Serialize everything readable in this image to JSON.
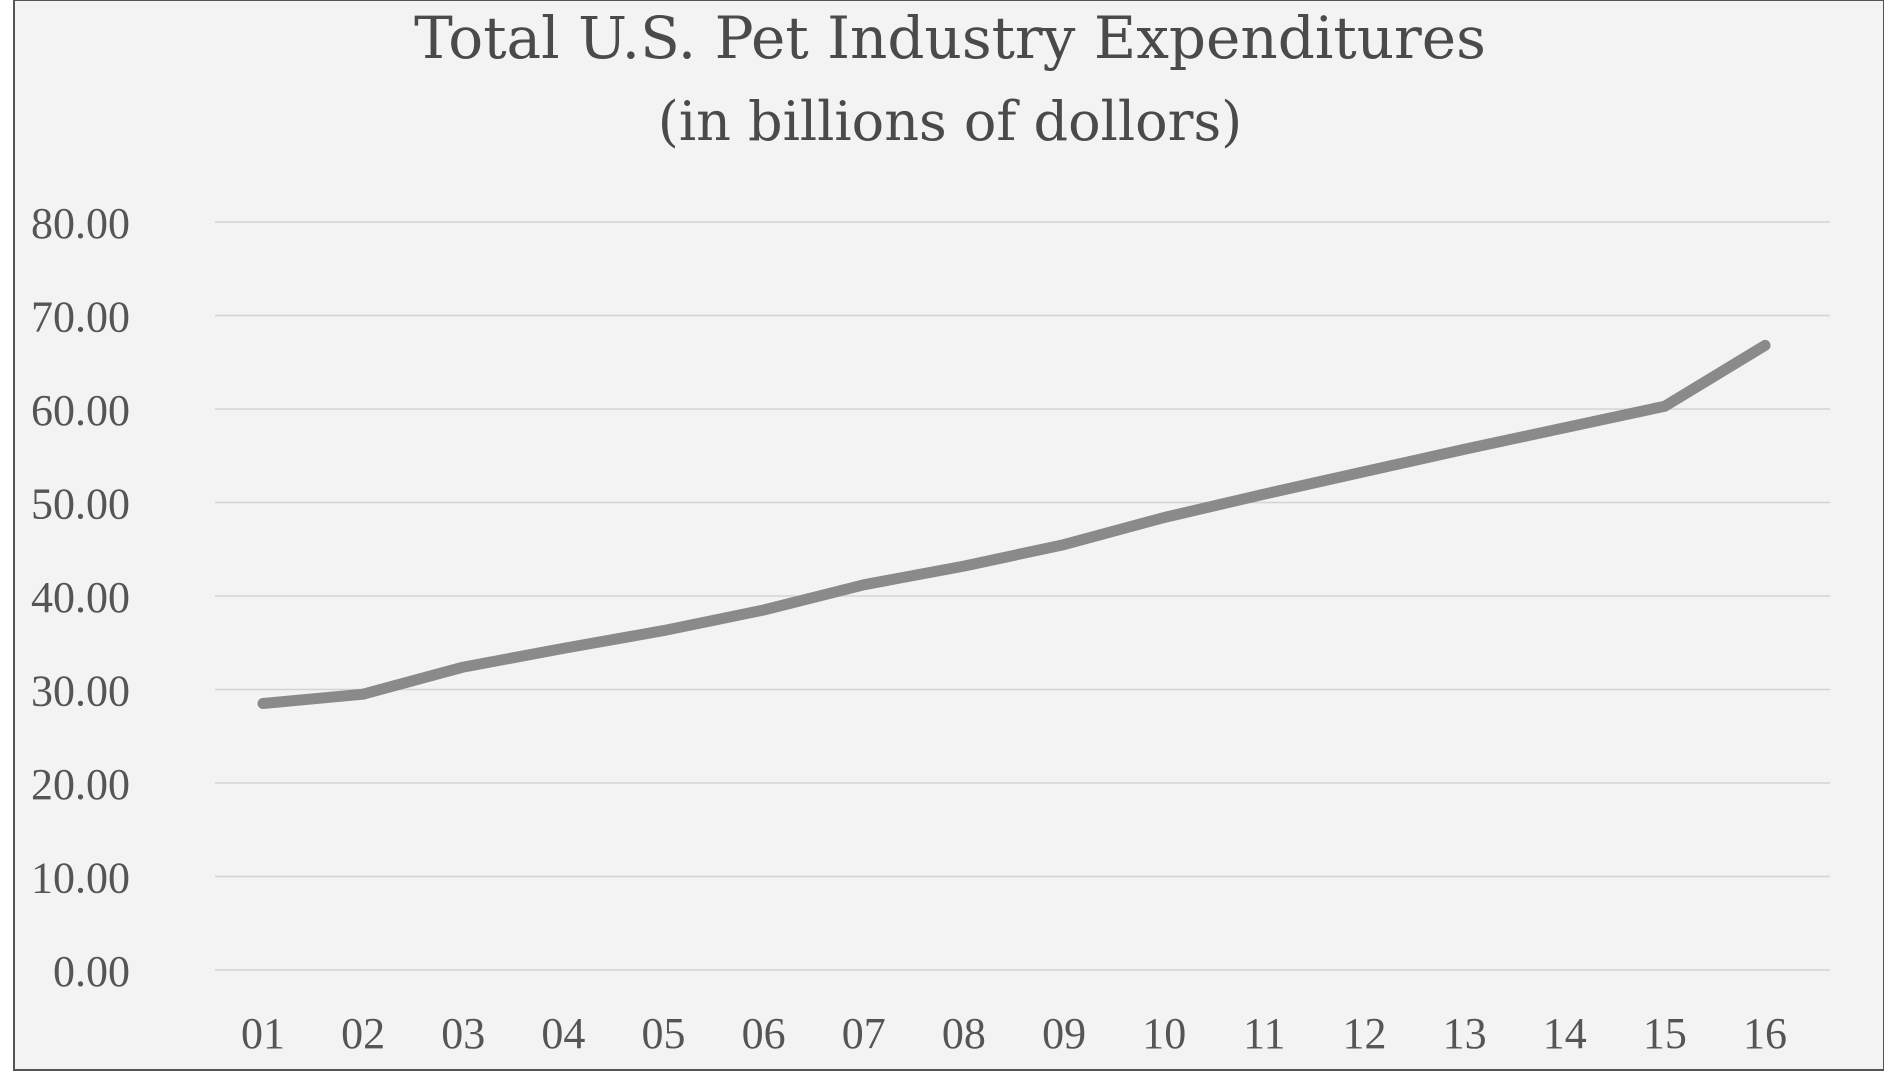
{
  "chart_data": {
    "type": "line",
    "title": "Total U.S. Pet Industry Expenditures",
    "subtitle": "(in billions of dollors)",
    "xlabel": "",
    "ylabel": "",
    "categories": [
      "01",
      "02",
      "03",
      "04",
      "05",
      "06",
      "07",
      "08",
      "09",
      "10",
      "11",
      "12",
      "13",
      "14",
      "15",
      "16"
    ],
    "series": [
      {
        "values": [
          28.5,
          29.5,
          32.4,
          34.4,
          36.3,
          38.5,
          41.2,
          43.2,
          45.5,
          48.4,
          50.9,
          53.3,
          55.7,
          58.0,
          60.3,
          66.8
        ]
      }
    ],
    "ylim": [
      0,
      80
    ],
    "yticks": [
      "0.00",
      "10.00",
      "20.00",
      "30.00",
      "40.00",
      "50.00",
      "60.00",
      "70.00",
      "80.00"
    ],
    "grid": true,
    "legend": "none",
    "colors": {
      "line": "#8a8a8a",
      "grid": "#d4d4d4",
      "background": "#f3f3f3",
      "frame": "#555555",
      "text": "#555555"
    }
  }
}
